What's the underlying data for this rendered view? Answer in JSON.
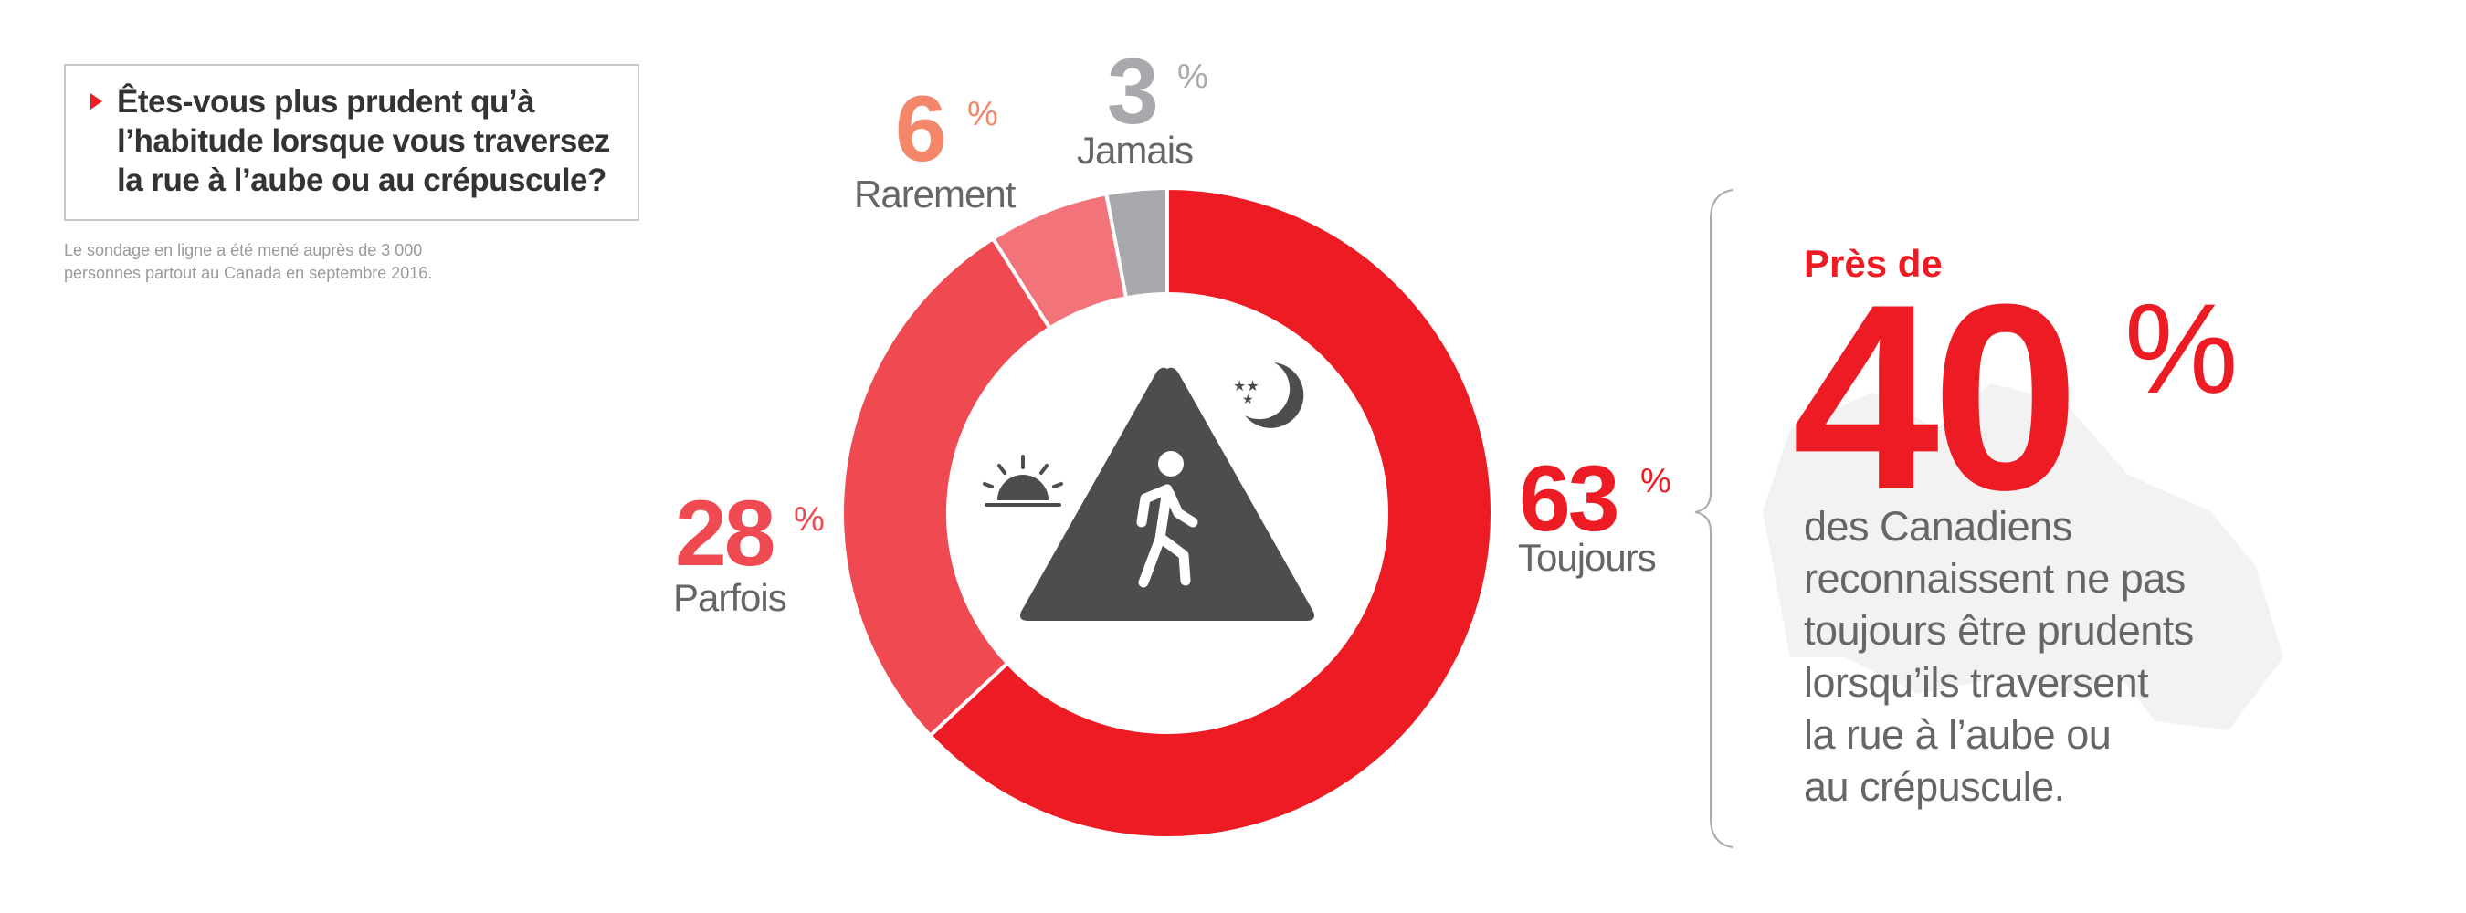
{
  "question": {
    "text": "Êtes-vous plus prudent qu’à\nl’habitude lorsque vous traversez\nla rue à l’aube ou au crépuscule?",
    "bullet_icon": "red-triangle-arrow-icon"
  },
  "note": "Le sondage en ligne a été mené auprès de 3 000\npersonnes partout au Canada en septembre 2016.",
  "chart_data": {
    "type": "pie",
    "variant": "donut",
    "start": "top",
    "direction": "clockwise",
    "unit": "%",
    "slices": [
      {
        "label": "Toujours",
        "value": 63,
        "color": "#ED1C24",
        "value_text": "63",
        "pct_text": "%",
        "label_color": "#ED1C24"
      },
      {
        "label": "Parfois",
        "value": 28,
        "color": "#EF4A52",
        "value_text": "28",
        "pct_text": "%",
        "label_color": "#EF4A52"
      },
      {
        "label": "Rarement",
        "value": 6,
        "color": "#F27379",
        "value_text": "6",
        "pct_text": "%",
        "label_color": "#F4866A"
      },
      {
        "label": "Jamais",
        "value": 3,
        "color": "#A7A9AC",
        "value_text": "3",
        "pct_text": "%",
        "label_color": "#A7A9AC"
      }
    ],
    "center_icons": [
      "pedestrian-warning-sign-icon",
      "sunrise-icon",
      "moon-stars-icon"
    ]
  },
  "callout": {
    "lead": "Près de",
    "value": "40",
    "pct": "%",
    "body": "des Canadiens\nreconnaissent ne pas\ntoujours être prudents\nlorsqu’ils traversent\nla rue à l’aube ou\nau crépuscule.",
    "accent": "#ED1C24",
    "background_icon": "canada-map-icon"
  }
}
